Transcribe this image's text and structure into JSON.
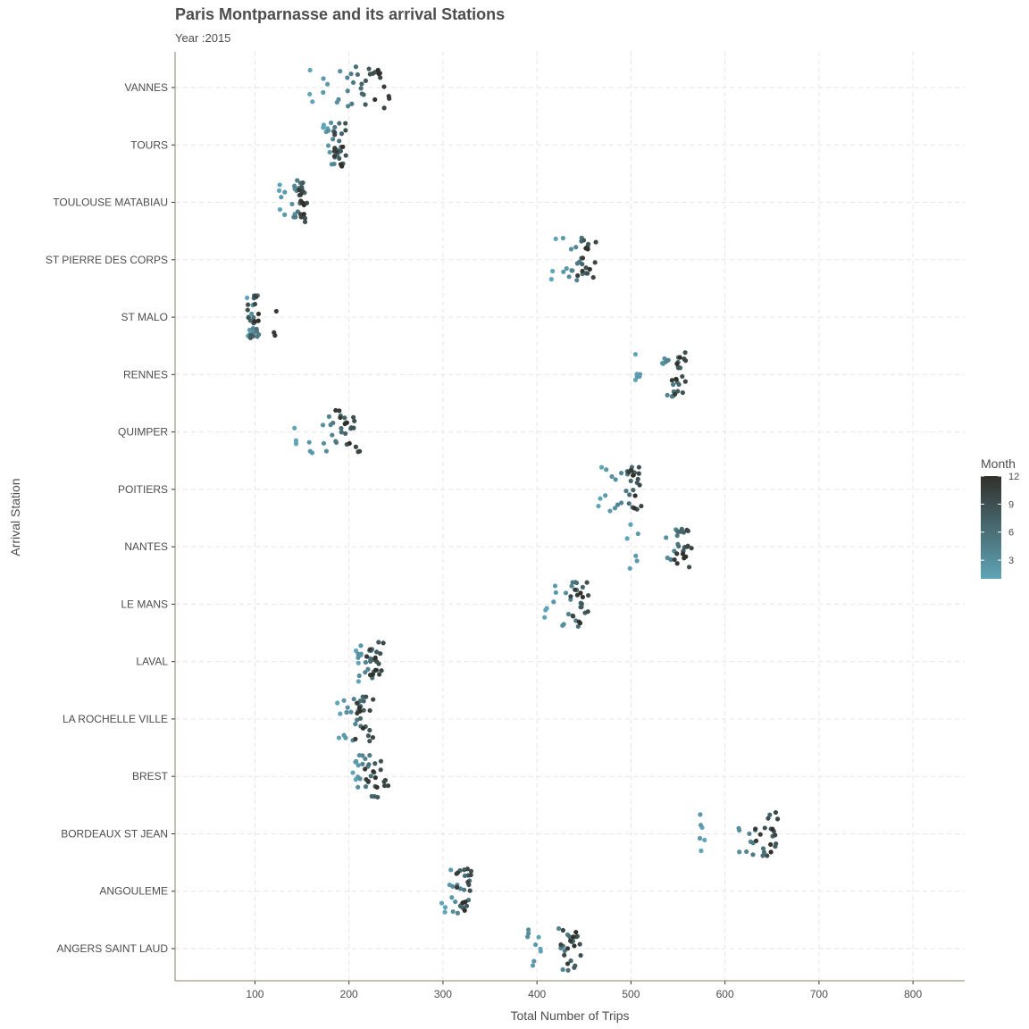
{
  "chart_data": {
    "type": "scatter",
    "title": "Paris Montparnasse and its arrival Stations",
    "subtitle": "Year :2015",
    "xlabel": "Total Number of Trips",
    "ylabel": "Arrival Station",
    "xlim": [
      15,
      855
    ],
    "x_ticks": [
      100,
      200,
      300,
      400,
      500,
      600,
      700,
      800
    ],
    "grid": "dashed",
    "legend": {
      "title": "Month",
      "position": "right",
      "ticks": [
        3,
        6,
        9,
        12
      ],
      "range": [
        1,
        12
      ],
      "color_low": "#5fa4b7",
      "color_high": "#32302a"
    },
    "categories": [
      "ANGERS SAINT LAUD",
      "ANGOULEME",
      "BORDEAUX ST JEAN",
      "BREST",
      "LA ROCHELLE VILLE",
      "LAVAL",
      "LE MANS",
      "NANTES",
      "POITIERS",
      "QUIMPER",
      "RENNES",
      "ST MALO",
      "ST PIERRE DES CORPS",
      "TOULOUSE MATABIAU",
      "TOURS",
      "VANNES"
    ],
    "series": [
      {
        "station": "ANGERS SAINT LAUD",
        "values": [
          404,
          398,
          390,
          425,
          430,
          435,
          438,
          442,
          445,
          428,
          433,
          440
        ]
      },
      {
        "station": "ANGOULEME",
        "values": [
          300,
          308,
          312,
          318,
          322,
          326,
          320,
          325,
          330,
          328,
          315,
          324
        ]
      },
      {
        "station": "BORDEAUX ST JEAN",
        "values": [
          577,
          576,
          615,
          625,
          630,
          640,
          648,
          652,
          645,
          655,
          635,
          650
        ]
      },
      {
        "station": "BREST",
        "values": [
          205,
          210,
          212,
          215,
          220,
          222,
          225,
          230,
          235,
          240,
          218,
          228
        ]
      },
      {
        "station": "LA ROCHELLE VILLE",
        "values": [
          190,
          195,
          200,
          205,
          210,
          212,
          215,
          218,
          220,
          225,
          208,
          214
        ]
      },
      {
        "station": "LAVAL",
        "values": [
          210,
          215,
          212,
          218,
          222,
          225,
          228,
          230,
          232,
          235,
          220,
          226
        ]
      },
      {
        "station": "LE MANS",
        "values": [
          410,
          420,
          430,
          435,
          440,
          445,
          448,
          450,
          452,
          438,
          442,
          447
        ]
      },
      {
        "station": "NANTES",
        "values": [
          497,
          506,
          537,
          545,
          550,
          552,
          555,
          558,
          560,
          562,
          548,
          556
        ]
      },
      {
        "station": "POITIERS",
        "values": [
          466,
          475,
          482,
          488,
          495,
          500,
          502,
          505,
          508,
          510,
          498,
          504
        ]
      },
      {
        "station": "QUIMPER",
        "values": [
          142,
          160,
          175,
          180,
          185,
          190,
          195,
          200,
          205,
          210,
          188,
          198
        ]
      },
      {
        "station": "RENNES",
        "values": [
          506,
          508,
          535,
          540,
          545,
          548,
          550,
          552,
          555,
          558,
          546,
          551
        ]
      },
      {
        "station": "ST MALO",
        "values": [
          92,
          95,
          98,
          100,
          102,
          100,
          98,
          97,
          95,
          99,
          120,
          101
        ]
      },
      {
        "station": "ST PIERRE DES CORPS",
        "values": [
          418,
          430,
          435,
          440,
          445,
          448,
          450,
          452,
          455,
          460,
          446,
          454
        ]
      },
      {
        "station": "TOULOUSE MATABIAU",
        "values": [
          125,
          130,
          140,
          142,
          145,
          148,
          150,
          152,
          155,
          148,
          146,
          151
        ]
      },
      {
        "station": "TOURS",
        "values": [
          175,
          178,
          180,
          183,
          185,
          188,
          190,
          192,
          195,
          187,
          184,
          191
        ]
      },
      {
        "station": "VANNES",
        "values": [
          160,
          175,
          190,
          200,
          205,
          210,
          215,
          220,
          225,
          235,
          240,
          230
        ]
      }
    ]
  }
}
